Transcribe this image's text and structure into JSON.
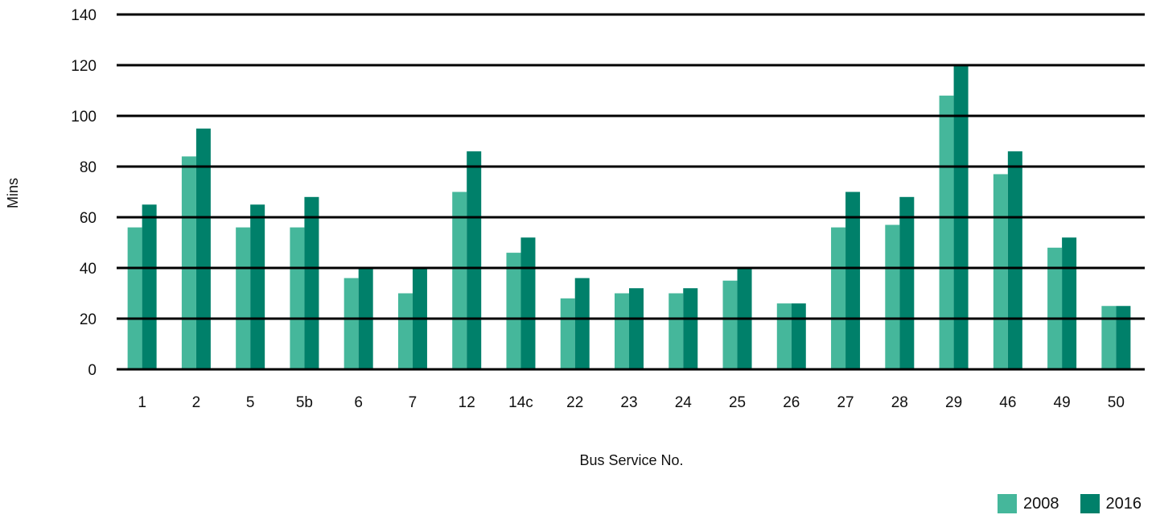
{
  "colors": {
    "2008": "#45b79b",
    "2016": "#00806a",
    "grid": "#000000"
  },
  "chart_data": {
    "type": "bar",
    "title": "",
    "xlabel": "Bus Service No.",
    "ylabel": "Mins",
    "ylim": [
      0,
      140
    ],
    "yticks": [
      0,
      20,
      40,
      60,
      80,
      100,
      120,
      140
    ],
    "grid": true,
    "legend_position": "bottom-right",
    "categories": [
      "1",
      "2",
      "5",
      "5b",
      "6",
      "7",
      "12",
      "14c",
      "22",
      "23",
      "24",
      "25",
      "26",
      "27",
      "28",
      "29",
      "46",
      "49",
      "50"
    ],
    "series": [
      {
        "name": "2008",
        "values": [
          56,
          84,
          56,
          56,
          36,
          30,
          70,
          46,
          28,
          30,
          30,
          35,
          26,
          56,
          57,
          108,
          77,
          48,
          25
        ]
      },
      {
        "name": "2016",
        "values": [
          65,
          95,
          65,
          68,
          40,
          40,
          86,
          52,
          36,
          32,
          32,
          40,
          26,
          70,
          68,
          120,
          86,
          52,
          25
        ]
      }
    ]
  }
}
